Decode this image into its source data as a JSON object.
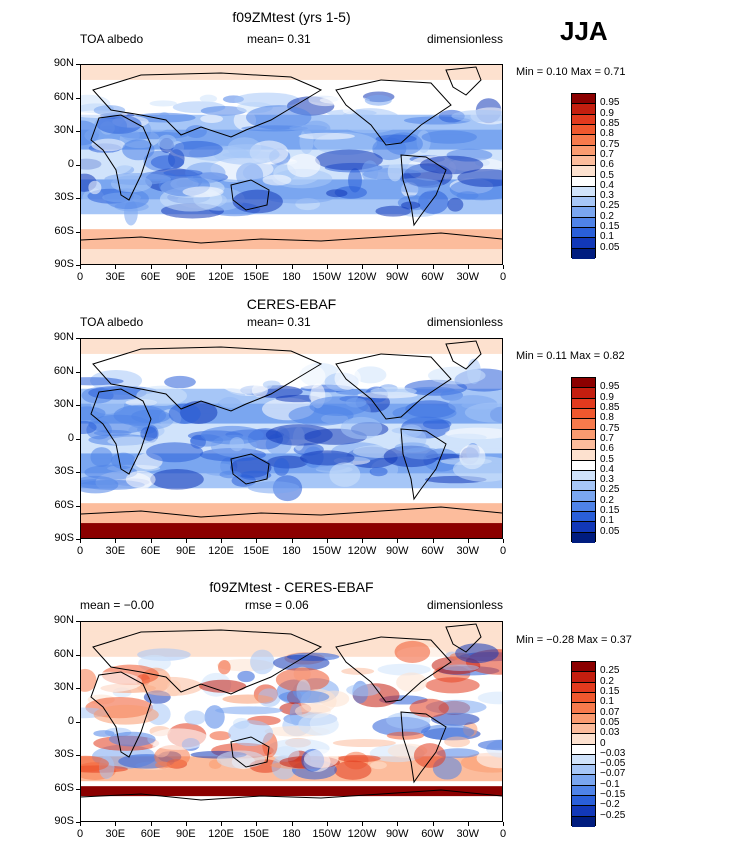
{
  "season": "JJA",
  "panels": [
    {
      "title": "f09ZMtest (yrs 1-5)",
      "left_label": "TOA albedo",
      "mid_label": "mean=",
      "mid_value": "0.31",
      "right_label": "dimensionless",
      "min_label": "Min =",
      "min_value": "0.10",
      "max_label": "Max =",
      "max_value": "0.71",
      "colorbar": {
        "labels": [
          "0.95",
          "0.9",
          "0.85",
          "0.8",
          "0.75",
          "0.7",
          "0.6",
          "0.5",
          "0.4",
          "0.3",
          "0.25",
          "0.2",
          "0.15",
          "0.1",
          "0.05"
        ],
        "colors": [
          "#8b0000",
          "#c41e0f",
          "#e23a1e",
          "#f0582e",
          "#f77a4c",
          "#fa9b70",
          "#fcbc9c",
          "#fde1cf",
          "#ffffff",
          "#d0e3fb",
          "#a6c6f7",
          "#7aa6f0",
          "#4f83e8",
          "#2a5fd9",
          "#1238b8",
          "#001c7f"
        ]
      }
    },
    {
      "title": "CERES-EBAF",
      "left_label": "TOA albedo",
      "mid_label": "mean=",
      "mid_value": "0.31",
      "right_label": "dimensionless",
      "min_label": "Min =",
      "min_value": "0.11",
      "max_label": "Max =",
      "max_value": "0.82",
      "colorbar": {
        "labels": [
          "0.95",
          "0.9",
          "0.85",
          "0.8",
          "0.75",
          "0.7",
          "0.6",
          "0.5",
          "0.4",
          "0.3",
          "0.25",
          "0.2",
          "0.15",
          "0.1",
          "0.05"
        ],
        "colors": [
          "#8b0000",
          "#c41e0f",
          "#e23a1e",
          "#f0582e",
          "#f77a4c",
          "#fa9b70",
          "#fcbc9c",
          "#fde1cf",
          "#ffffff",
          "#d0e3fb",
          "#a6c6f7",
          "#7aa6f0",
          "#4f83e8",
          "#2a5fd9",
          "#1238b8",
          "#001c7f"
        ]
      }
    },
    {
      "title": "f09ZMtest - CERES-EBAF",
      "left_label": "mean =",
      "left_value": "−0.00",
      "mid_label": "rmse =",
      "mid_value": "0.06",
      "right_label": "dimensionless",
      "min_label": "Min =",
      "min_value": "−0.28",
      "max_label": "Max =",
      "max_value": "0.37",
      "colorbar": {
        "labels": [
          "0.25",
          "0.2",
          "0.15",
          "0.1",
          "0.07",
          "0.05",
          "0.03",
          "0",
          "−0.03",
          "−0.05",
          "−0.07",
          "−0.1",
          "−0.15",
          "−0.2",
          "−0.25"
        ],
        "colors": [
          "#8b0000",
          "#c41e0f",
          "#e23a1e",
          "#f0582e",
          "#f77a4c",
          "#fa9b70",
          "#fcbc9c",
          "#fde1cf",
          "#ffffff",
          "#d0e3fb",
          "#a6c6f7",
          "#7aa6f0",
          "#4f83e8",
          "#2a5fd9",
          "#1238b8",
          "#001c7f"
        ]
      }
    }
  ],
  "lat_ticks": [
    "90N",
    "60N",
    "30N",
    "0",
    "30S",
    "60S",
    "90S"
  ],
  "lon_ticks": [
    "0",
    "30E",
    "60E",
    "90E",
    "120E",
    "150E",
    "180",
    "150W",
    "120W",
    "90W",
    "60W",
    "30W",
    "0"
  ]
}
